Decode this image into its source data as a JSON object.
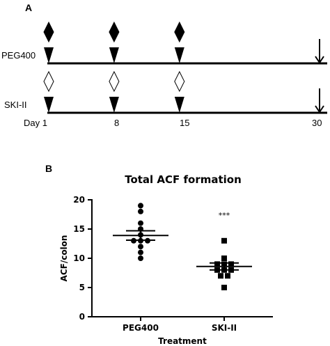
{
  "panel_a": {
    "letter": "A",
    "rows": [
      {
        "label": "PEG400",
        "marker": "filled"
      },
      {
        "label": "SKI-II",
        "marker": "open"
      }
    ],
    "day_prefix": "Day",
    "dose_days": [
      1,
      8,
      15
    ],
    "sacrifice_day": 30,
    "day_labels": [
      "Day 1",
      "8",
      "15",
      "30"
    ]
  },
  "panel_b": {
    "letter": "B"
  },
  "chart_data": {
    "type": "scatter",
    "title": "Total ACF formation",
    "xlabel": "Treatment",
    "ylabel": "ACF/colon",
    "ylim": [
      0,
      20
    ],
    "yticks": [
      0,
      5,
      10,
      15,
      20
    ],
    "categories": [
      "PEG400",
      "SKI-II"
    ],
    "series": [
      {
        "name": "PEG400",
        "marker": "circle",
        "values": [
          19,
          18,
          16,
          15,
          14,
          13,
          13,
          13,
          12,
          11,
          10
        ],
        "mean": 13.9,
        "sem": 0.8
      },
      {
        "name": "SKI-II",
        "marker": "square",
        "values": [
          13,
          10,
          9,
          9,
          9,
          8,
          8,
          8,
          7,
          7,
          5
        ],
        "mean": 8.6,
        "sem": 0.6
      }
    ],
    "annotations": [
      {
        "category": "SKI-II",
        "text": "***"
      }
    ]
  }
}
